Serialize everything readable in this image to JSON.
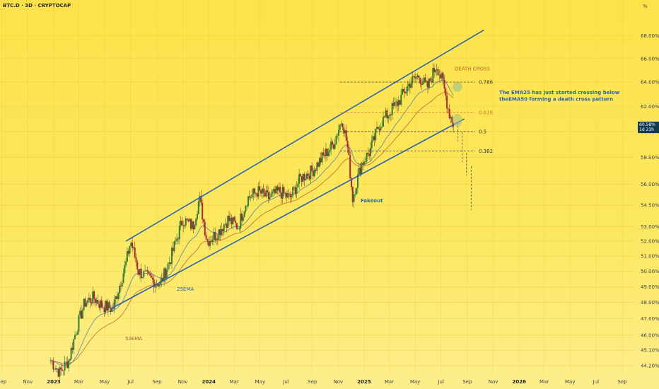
{
  "header": {
    "ticker": "BTC.D · 3D · CRYPTOCAP",
    "axis_unit": "%"
  },
  "price_tag": {
    "value": "60.58%",
    "countdown": "1d 23h"
  },
  "colors": {
    "channel": "#2b63b5",
    "ema25": "#3b6fb8",
    "ema50": "#b5552a",
    "fib": "#333333",
    "fib_618": "#c8792a",
    "up_candle": "#2f7f35",
    "down_candle": "#a8283a",
    "annotation_blue": "#2b63b5",
    "annotation_orange": "#c0662a"
  },
  "chart_data": {
    "type": "candlestick",
    "title": "BTC.D · 3D · CRYPTOCAP",
    "y_axis": {
      "unit": "%",
      "scale": "log",
      "ticks": [
        "44.20%",
        "45.10%",
        "46.00%",
        "47.00%",
        "48.00%",
        "49.00%",
        "50.00%",
        "51.00%",
        "52.00%",
        "53.00%",
        "54.50%",
        "56.00%",
        "58.00%",
        "60.00%",
        "62.00%",
        "64.00%",
        "66.00%",
        "68.00%"
      ]
    },
    "x_axis": {
      "ticks": [
        "Sep",
        "Nov",
        "2023",
        "Mar",
        "May",
        "Jul",
        "Sep",
        "Nov",
        "2024",
        "Mar",
        "May",
        "Jul",
        "Sep",
        "Nov",
        "2025",
        "Mar",
        "May",
        "Jul",
        "Sep",
        "Nov",
        "2026",
        "Mar",
        "May",
        "Jul",
        "Sep"
      ],
      "years": [
        "2023",
        "2024",
        "2025",
        "2026"
      ]
    },
    "candle_series": [
      {
        "date": "2022-12-25",
        "close": 44.5
      },
      {
        "date": "2023-01-15",
        "close": 43.8
      },
      {
        "date": "2023-02-05",
        "close": 44.5
      },
      {
        "date": "2023-02-25",
        "close": 46.5
      },
      {
        "date": "2023-03-15",
        "close": 48.0
      },
      {
        "date": "2023-04-05",
        "close": 48.3
      },
      {
        "date": "2023-04-25",
        "close": 47.8
      },
      {
        "date": "2023-05-20",
        "close": 47.6
      },
      {
        "date": "2023-06-20",
        "close": 50.5
      },
      {
        "date": "2023-07-01",
        "close": 52.0
      },
      {
        "date": "2023-07-20",
        "close": 50.0
      },
      {
        "date": "2023-08-15",
        "close": 49.5
      },
      {
        "date": "2023-09-10",
        "close": 49.2
      },
      {
        "date": "2023-10-05",
        "close": 51.0
      },
      {
        "date": "2023-11-01",
        "close": 53.5
      },
      {
        "date": "2023-11-25",
        "close": 53.0
      },
      {
        "date": "2023-12-10",
        "close": 55.0
      },
      {
        "date": "2023-12-28",
        "close": 52.0
      },
      {
        "date": "2024-01-20",
        "close": 52.5
      },
      {
        "date": "2024-02-15",
        "close": 53.5
      },
      {
        "date": "2024-03-10",
        "close": 53.0
      },
      {
        "date": "2024-04-01",
        "close": 55.0
      },
      {
        "date": "2024-04-25",
        "close": 55.5
      },
      {
        "date": "2024-05-20",
        "close": 55.0
      },
      {
        "date": "2024-06-15",
        "close": 55.5
      },
      {
        "date": "2024-07-10",
        "close": 55.0
      },
      {
        "date": "2024-08-05",
        "close": 56.5
      },
      {
        "date": "2024-09-01",
        "close": 57.0
      },
      {
        "date": "2024-09-25",
        "close": 58.0
      },
      {
        "date": "2024-10-20",
        "close": 59.0
      },
      {
        "date": "2024-11-10",
        "close": 61.0
      },
      {
        "date": "2024-11-22",
        "close": 59.0
      },
      {
        "date": "2024-12-05",
        "close": 55.0
      },
      {
        "date": "2024-12-25",
        "close": 57.5
      },
      {
        "date": "2025-01-15",
        "close": 58.5
      },
      {
        "date": "2025-02-05",
        "close": 60.5
      },
      {
        "date": "2025-03-01",
        "close": 61.5
      },
      {
        "date": "2025-03-25",
        "close": 62.5
      },
      {
        "date": "2025-04-20",
        "close": 64.0
      },
      {
        "date": "2025-05-10",
        "close": 64.5
      },
      {
        "date": "2025-05-30",
        "close": 63.5
      },
      {
        "date": "2025-06-20",
        "close": 65.5
      },
      {
        "date": "2025-07-05",
        "close": 64.0
      },
      {
        "date": "2025-07-20",
        "close": 61.5
      },
      {
        "date": "2025-08-01",
        "close": 60.5
      }
    ],
    "projection": {
      "points": [
        {
          "date": "2025-08-10",
          "value": 59.6
        },
        {
          "date": "2025-08-20",
          "value": 58.0
        },
        {
          "date": "2025-08-30",
          "value": 57.0
        },
        {
          "date": "2025-09-10",
          "value": 54.5
        }
      ]
    },
    "fib_levels": [
      {
        "label": "0.786",
        "value": 64.0
      },
      {
        "label": "0.618",
        "value": 61.5
      },
      {
        "label": "0.5",
        "value": 60.0
      },
      {
        "label": "0.382",
        "value": 58.5
      }
    ],
    "annotations": {
      "death_cross": "DEATH CROSS",
      "note_line1": "The EMA25 has just started crossing below",
      "note_line2": "theEMA50 forming a death cross pattern",
      "fakeout": "Fakeout",
      "ema25": "25EMA",
      "ema50": "50EMA"
    }
  }
}
